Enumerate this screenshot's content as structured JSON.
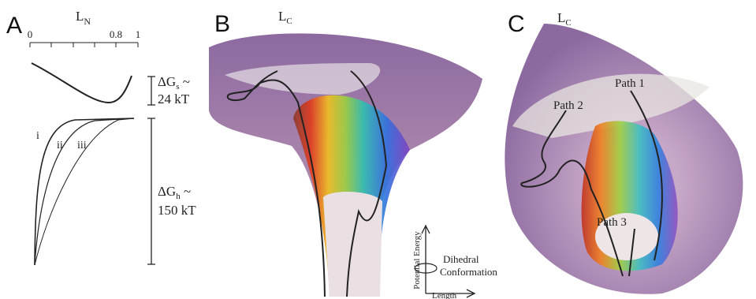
{
  "panels": [
    {
      "letter": "A",
      "axis": {
        "label": {
          "main": "L",
          "sub": "N"
        },
        "tick_labels": [
          "0",
          "0.8",
          "1"
        ]
      },
      "top_curve": {
        "label": {
          "main": "ΔG",
          "sub": "s",
          "tail": " ~"
        },
        "value": "24 kT"
      },
      "bottom_curves": {
        "names": [
          "i",
          "ii",
          "iii"
        ],
        "label": {
          "main": "ΔG",
          "sub": "h",
          "tail": " ~"
        },
        "value": "150 kT"
      }
    },
    {
      "letter": "B",
      "surface_label": {
        "main": "L",
        "sub": "C"
      },
      "axes_legend": {
        "vertical": "Potential Energy",
        "rotation": [
          "Dihedral",
          "Conformation"
        ],
        "horizontal": "Length"
      }
    },
    {
      "letter": "C",
      "surface_label": {
        "main": "L",
        "sub": "C"
      },
      "paths": [
        "Path 1",
        "Path 2",
        "Path 3"
      ]
    }
  ]
}
